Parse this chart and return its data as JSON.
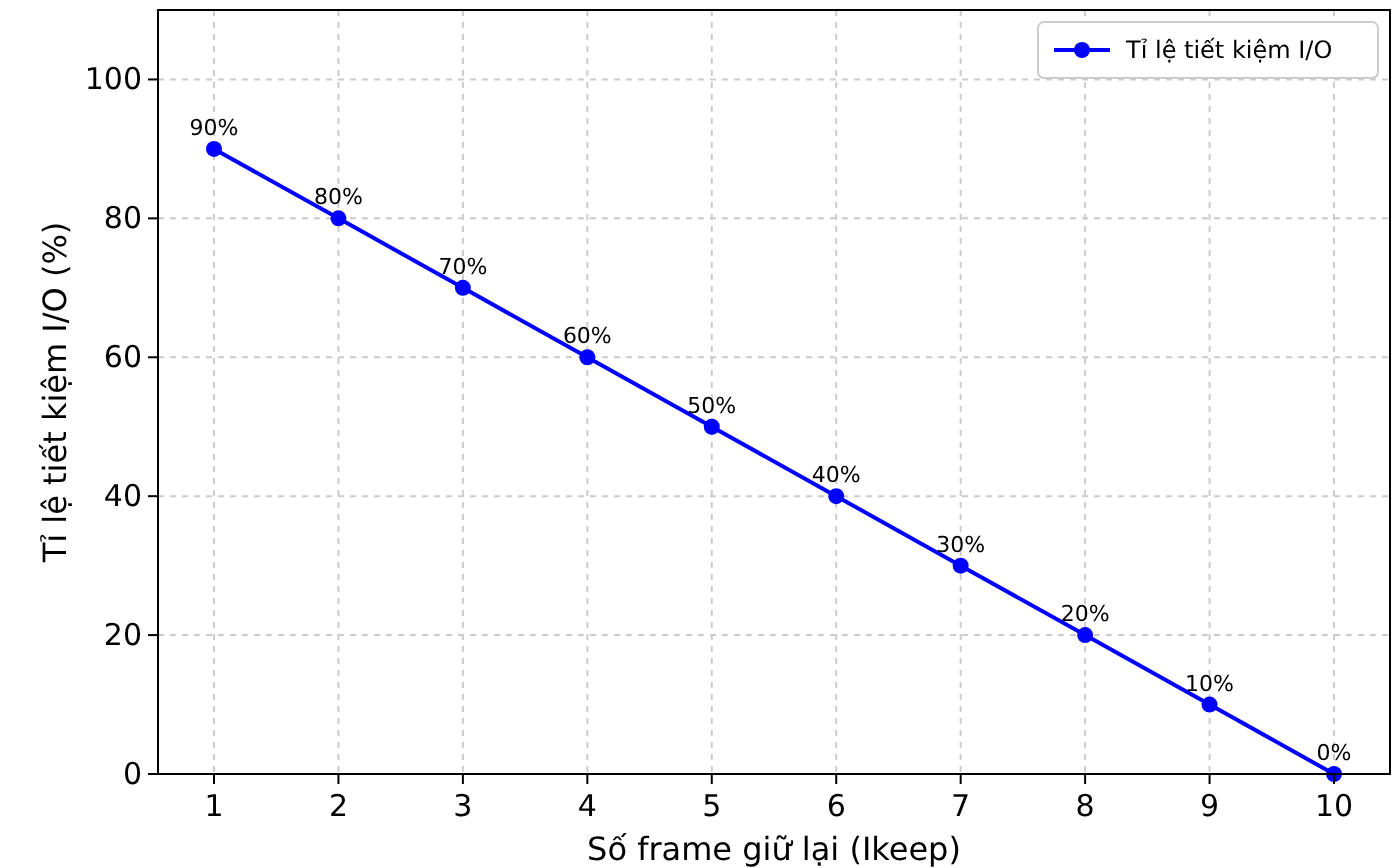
{
  "chart_data": {
    "type": "line",
    "xlabel": "Số frame giữ lại (Ikeep)",
    "ylabel": "Tỉ lệ tiết kiệm I/O (%)",
    "x": [
      1,
      2,
      3,
      4,
      5,
      6,
      7,
      8,
      9,
      10
    ],
    "series": [
      {
        "name": "Tỉ lệ tiết kiệm I/O",
        "color": "#0000ff",
        "values": [
          90,
          80,
          70,
          60,
          50,
          40,
          30,
          20,
          10,
          0
        ],
        "value_labels": [
          "90%",
          "80%",
          "70%",
          "60%",
          "50%",
          "40%",
          "30%",
          "20%",
          "10%",
          "0%"
        ]
      }
    ],
    "xlim": [
      0.55,
      10.45
    ],
    "xticks": [
      1,
      2,
      3,
      4,
      5,
      6,
      7,
      8,
      9,
      10
    ],
    "ylim": [
      0,
      110
    ],
    "yticks": [
      0,
      20,
      40,
      60,
      80,
      100
    ],
    "grid": true,
    "legend": "top right",
    "marker": "circle",
    "line_style": "solid"
  }
}
